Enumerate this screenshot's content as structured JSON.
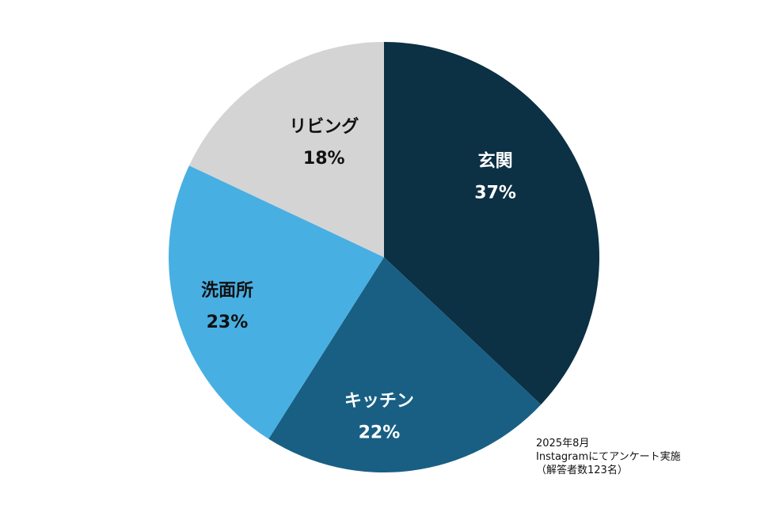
{
  "chart_data": {
    "type": "pie",
    "start_angle_deg": 0,
    "direction": "clockwise",
    "slices": [
      {
        "label": "玄関",
        "value": 37,
        "value_label": "37%",
        "color": "#0c3044",
        "text_color": "#ffffff"
      },
      {
        "label": "キッチン",
        "value": 22,
        "value_label": "22%",
        "color": "#185f83",
        "text_color": "#ffffff"
      },
      {
        "label": "洗面所",
        "value": 23,
        "value_label": "23%",
        "color": "#48afe2",
        "text_color": "#111111"
      },
      {
        "label": "リビング",
        "value": 18,
        "value_label": "18%",
        "color": "#d4d4d4",
        "text_color": "#111111"
      }
    ]
  },
  "note": {
    "line1": "2025年8月",
    "line2": "Instagramにてアンケート実施",
    "line3": "（解答者数123名）"
  }
}
